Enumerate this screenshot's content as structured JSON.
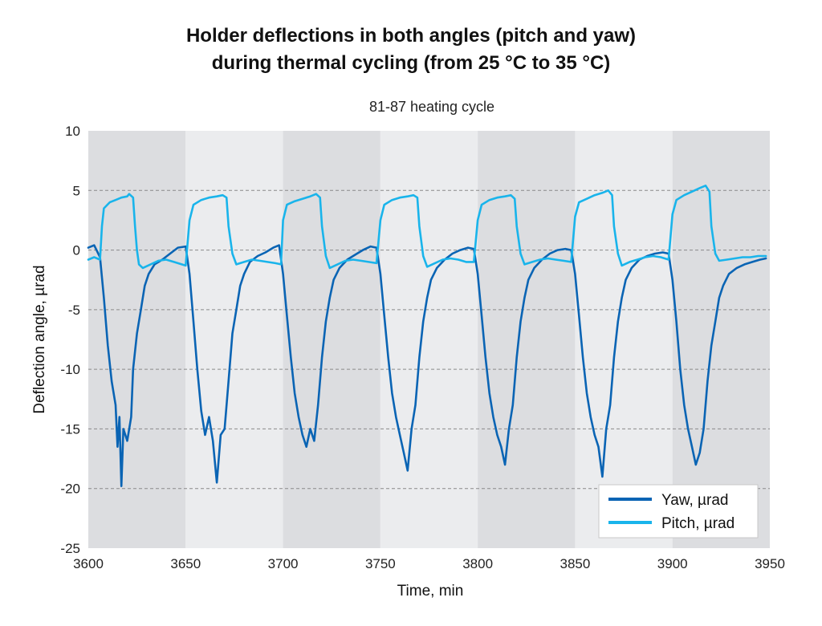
{
  "chart_data": {
    "type": "line",
    "title_line1": "Holder deflections in both angles (pitch and yaw)",
    "title_line2": "during thermal cycling (from 25 °C to 35 °C)",
    "subtitle": "81-87 heating cycle",
    "xlabel": "Time, min",
    "ylabel": "Deflection angle, µrad",
    "xlim": [
      3600,
      3950
    ],
    "ylim": [
      -25,
      10
    ],
    "xticks": [
      3600,
      3650,
      3700,
      3750,
      3800,
      3850,
      3900,
      3950
    ],
    "yticks": [
      10,
      5,
      0,
      -5,
      -10,
      -15,
      -20,
      -25
    ],
    "grid": "horizontal dashed at 5, 0, -5, -10, -15, -20",
    "background_bands": [
      {
        "from": 3600,
        "to": 3650,
        "shade": "dark"
      },
      {
        "from": 3650,
        "to": 3700,
        "shade": "light"
      },
      {
        "from": 3700,
        "to": 3750,
        "shade": "dark"
      },
      {
        "from": 3750,
        "to": 3800,
        "shade": "light"
      },
      {
        "from": 3800,
        "to": 3850,
        "shade": "dark"
      },
      {
        "from": 3850,
        "to": 3900,
        "shade": "light"
      },
      {
        "from": 3900,
        "to": 3950,
        "shade": "dark"
      }
    ],
    "legend_position": "bottom-right",
    "series": [
      {
        "name": "Yaw, µrad",
        "color": "#0a64b4",
        "points": [
          [
            3600,
            0.2
          ],
          [
            3603,
            0.4
          ],
          [
            3606,
            -0.6
          ],
          [
            3608,
            -4
          ],
          [
            3610,
            -8
          ],
          [
            3612,
            -11
          ],
          [
            3614,
            -13
          ],
          [
            3615,
            -16.5
          ],
          [
            3616,
            -14
          ],
          [
            3617,
            -19.8
          ],
          [
            3618,
            -15
          ],
          [
            3620,
            -16
          ],
          [
            3622,
            -14
          ],
          [
            3623,
            -10
          ],
          [
            3625,
            -7
          ],
          [
            3627,
            -5
          ],
          [
            3629,
            -3
          ],
          [
            3631,
            -2
          ],
          [
            3634,
            -1.2
          ],
          [
            3638,
            -0.8
          ],
          [
            3642,
            -0.3
          ],
          [
            3646,
            0.2
          ],
          [
            3650,
            0.3
          ],
          [
            3652,
            -2
          ],
          [
            3654,
            -6
          ],
          [
            3656,
            -10
          ],
          [
            3658,
            -13.5
          ],
          [
            3660,
            -15.5
          ],
          [
            3662,
            -14
          ],
          [
            3664,
            -16
          ],
          [
            3666,
            -19.5
          ],
          [
            3668,
            -15.5
          ],
          [
            3670,
            -15
          ],
          [
            3672,
            -11
          ],
          [
            3674,
            -7
          ],
          [
            3676,
            -5
          ],
          [
            3678,
            -3
          ],
          [
            3680,
            -2
          ],
          [
            3683,
            -1
          ],
          [
            3687,
            -0.5
          ],
          [
            3691,
            -0.2
          ],
          [
            3695,
            0.2
          ],
          [
            3698,
            0.4
          ],
          [
            3700,
            -2
          ],
          [
            3702,
            -5.5
          ],
          [
            3704,
            -9
          ],
          [
            3706,
            -12
          ],
          [
            3708,
            -14
          ],
          [
            3710,
            -15.5
          ],
          [
            3712,
            -16.5
          ],
          [
            3714,
            -15
          ],
          [
            3716,
            -16
          ],
          [
            3718,
            -13
          ],
          [
            3720,
            -9
          ],
          [
            3722,
            -6
          ],
          [
            3724,
            -4
          ],
          [
            3726,
            -2.5
          ],
          [
            3729,
            -1.5
          ],
          [
            3733,
            -0.8
          ],
          [
            3737,
            -0.4
          ],
          [
            3741,
            0
          ],
          [
            3745,
            0.3
          ],
          [
            3748,
            0.2
          ],
          [
            3750,
            -2
          ],
          [
            3752,
            -5.5
          ],
          [
            3754,
            -9
          ],
          [
            3756,
            -12
          ],
          [
            3758,
            -14
          ],
          [
            3760,
            -15.5
          ],
          [
            3762,
            -17
          ],
          [
            3764,
            -18.5
          ],
          [
            3766,
            -15
          ],
          [
            3768,
            -13
          ],
          [
            3770,
            -9
          ],
          [
            3772,
            -6
          ],
          [
            3774,
            -4
          ],
          [
            3776,
            -2.5
          ],
          [
            3779,
            -1.5
          ],
          [
            3783,
            -0.8
          ],
          [
            3787,
            -0.3
          ],
          [
            3791,
            0
          ],
          [
            3795,
            0.2
          ],
          [
            3798,
            0.1
          ],
          [
            3800,
            -2
          ],
          [
            3802,
            -5.5
          ],
          [
            3804,
            -9
          ],
          [
            3806,
            -12
          ],
          [
            3808,
            -14
          ],
          [
            3810,
            -15.5
          ],
          [
            3812,
            -16.5
          ],
          [
            3814,
            -18
          ],
          [
            3816,
            -15
          ],
          [
            3818,
            -13
          ],
          [
            3820,
            -9
          ],
          [
            3822,
            -6
          ],
          [
            3824,
            -4
          ],
          [
            3826,
            -2.5
          ],
          [
            3829,
            -1.5
          ],
          [
            3833,
            -0.8
          ],
          [
            3837,
            -0.3
          ],
          [
            3841,
            0
          ],
          [
            3845,
            0.1
          ],
          [
            3848,
            0
          ],
          [
            3850,
            -2
          ],
          [
            3852,
            -5.5
          ],
          [
            3854,
            -9
          ],
          [
            3856,
            -12
          ],
          [
            3858,
            -14
          ],
          [
            3860,
            -15.5
          ],
          [
            3862,
            -16.5
          ],
          [
            3864,
            -19
          ],
          [
            3866,
            -15
          ],
          [
            3868,
            -13
          ],
          [
            3870,
            -9
          ],
          [
            3872,
            -6
          ],
          [
            3874,
            -4
          ],
          [
            3876,
            -2.5
          ],
          [
            3879,
            -1.5
          ],
          [
            3883,
            -0.8
          ],
          [
            3887,
            -0.5
          ],
          [
            3891,
            -0.3
          ],
          [
            3895,
            -0.2
          ],
          [
            3898,
            -0.3
          ],
          [
            3900,
            -2.5
          ],
          [
            3902,
            -6
          ],
          [
            3904,
            -10
          ],
          [
            3906,
            -13
          ],
          [
            3908,
            -15
          ],
          [
            3910,
            -16.5
          ],
          [
            3912,
            -18
          ],
          [
            3914,
            -17
          ],
          [
            3916,
            -15
          ],
          [
            3918,
            -11
          ],
          [
            3920,
            -8
          ],
          [
            3922,
            -6
          ],
          [
            3924,
            -4
          ],
          [
            3926,
            -3
          ],
          [
            3929,
            -2
          ],
          [
            3933,
            -1.5
          ],
          [
            3937,
            -1.2
          ],
          [
            3941,
            -1
          ],
          [
            3945,
            -0.8
          ],
          [
            3948,
            -0.7
          ]
        ]
      },
      {
        "name": "Pitch, µrad",
        "color": "#19b4eb",
        "points": [
          [
            3600,
            -0.8
          ],
          [
            3603,
            -0.6
          ],
          [
            3606,
            -0.8
          ],
          [
            3607,
            2
          ],
          [
            3608,
            3.5
          ],
          [
            3611,
            4
          ],
          [
            3614,
            4.2
          ],
          [
            3617,
            4.4
          ],
          [
            3620,
            4.5
          ],
          [
            3621,
            4.7
          ],
          [
            3623,
            4.4
          ],
          [
            3624,
            2
          ],
          [
            3625,
            0
          ],
          [
            3626,
            -1.2
          ],
          [
            3628,
            -1.5
          ],
          [
            3632,
            -1.2
          ],
          [
            3636,
            -0.9
          ],
          [
            3640,
            -0.8
          ],
          [
            3644,
            -1
          ],
          [
            3648,
            -1.2
          ],
          [
            3650,
            -1.3
          ],
          [
            3652,
            2.5
          ],
          [
            3654,
            3.8
          ],
          [
            3658,
            4.2
          ],
          [
            3662,
            4.4
          ],
          [
            3666,
            4.5
          ],
          [
            3669,
            4.6
          ],
          [
            3671,
            4.4
          ],
          [
            3672,
            2
          ],
          [
            3674,
            -0.3
          ],
          [
            3676,
            -1.2
          ],
          [
            3680,
            -1
          ],
          [
            3684,
            -0.8
          ],
          [
            3688,
            -0.9
          ],
          [
            3692,
            -1
          ],
          [
            3696,
            -1.1
          ],
          [
            3699,
            -1.2
          ],
          [
            3700,
            2.5
          ],
          [
            3702,
            3.8
          ],
          [
            3706,
            4.1
          ],
          [
            3710,
            4.3
          ],
          [
            3714,
            4.5
          ],
          [
            3717,
            4.7
          ],
          [
            3719,
            4.4
          ],
          [
            3720,
            2
          ],
          [
            3722,
            -0.5
          ],
          [
            3724,
            -1.5
          ],
          [
            3728,
            -1.2
          ],
          [
            3732,
            -0.9
          ],
          [
            3736,
            -0.8
          ],
          [
            3740,
            -0.9
          ],
          [
            3744,
            -1
          ],
          [
            3748,
            -1.1
          ],
          [
            3750,
            2.5
          ],
          [
            3752,
            3.8
          ],
          [
            3756,
            4.2
          ],
          [
            3760,
            4.4
          ],
          [
            3764,
            4.5
          ],
          [
            3767,
            4.6
          ],
          [
            3769,
            4.4
          ],
          [
            3770,
            2
          ],
          [
            3772,
            -0.5
          ],
          [
            3774,
            -1.4
          ],
          [
            3778,
            -1.1
          ],
          [
            3782,
            -0.8
          ],
          [
            3786,
            -0.7
          ],
          [
            3790,
            -0.8
          ],
          [
            3794,
            -1
          ],
          [
            3798,
            -1
          ],
          [
            3800,
            2.5
          ],
          [
            3802,
            3.8
          ],
          [
            3806,
            4.2
          ],
          [
            3810,
            4.4
          ],
          [
            3814,
            4.5
          ],
          [
            3817,
            4.6
          ],
          [
            3819,
            4.3
          ],
          [
            3820,
            2
          ],
          [
            3822,
            -0.3
          ],
          [
            3824,
            -1.2
          ],
          [
            3828,
            -1
          ],
          [
            3832,
            -0.8
          ],
          [
            3836,
            -0.7
          ],
          [
            3840,
            -0.8
          ],
          [
            3844,
            -0.9
          ],
          [
            3848,
            -1
          ],
          [
            3850,
            2.8
          ],
          [
            3852,
            4
          ],
          [
            3856,
            4.3
          ],
          [
            3860,
            4.6
          ],
          [
            3864,
            4.8
          ],
          [
            3867,
            5
          ],
          [
            3869,
            4.6
          ],
          [
            3870,
            2
          ],
          [
            3872,
            -0.3
          ],
          [
            3874,
            -1.3
          ],
          [
            3878,
            -1
          ],
          [
            3882,
            -0.8
          ],
          [
            3886,
            -0.6
          ],
          [
            3890,
            -0.5
          ],
          [
            3894,
            -0.6
          ],
          [
            3898,
            -0.8
          ],
          [
            3900,
            3
          ],
          [
            3902,
            4.2
          ],
          [
            3906,
            4.6
          ],
          [
            3910,
            4.9
          ],
          [
            3914,
            5.2
          ],
          [
            3917,
            5.4
          ],
          [
            3919,
            4.9
          ],
          [
            3920,
            2
          ],
          [
            3922,
            -0.3
          ],
          [
            3924,
            -0.9
          ],
          [
            3928,
            -0.8
          ],
          [
            3932,
            -0.7
          ],
          [
            3936,
            -0.6
          ],
          [
            3940,
            -0.6
          ],
          [
            3944,
            -0.5
          ],
          [
            3948,
            -0.5
          ]
        ]
      }
    ]
  }
}
